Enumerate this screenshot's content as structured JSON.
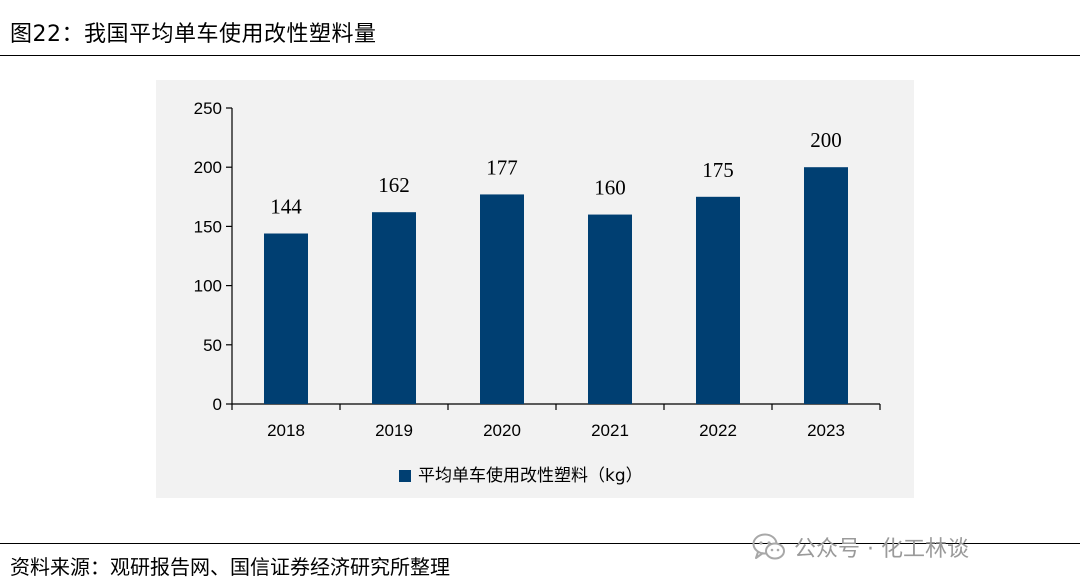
{
  "header": {
    "figure_title": "图22：我国平均单车使用改性塑料量"
  },
  "footer": {
    "source": "资料来源：观研报告网、国信证券经济研究所整理",
    "watermark": "公众号 · 化工林谈",
    "watermark_icon": "wechat-icon"
  },
  "colors": {
    "bar": "#003f72",
    "plot_background": "#f2f2f2"
  },
  "chart_data": {
    "type": "bar",
    "categories": [
      "2018",
      "2019",
      "2020",
      "2021",
      "2022",
      "2023"
    ],
    "series": [
      {
        "name": "平均单车使用改性塑料（kg）",
        "values": [
          144,
          162,
          177,
          160,
          175,
          200
        ]
      }
    ],
    "data_labels": [
      "144",
      "162",
      "177",
      "160",
      "175",
      "200"
    ],
    "yticks": [
      0,
      50,
      100,
      150,
      200,
      250
    ],
    "ylim": [
      0,
      250
    ],
    "grid": false,
    "legend": "bottom-center"
  }
}
